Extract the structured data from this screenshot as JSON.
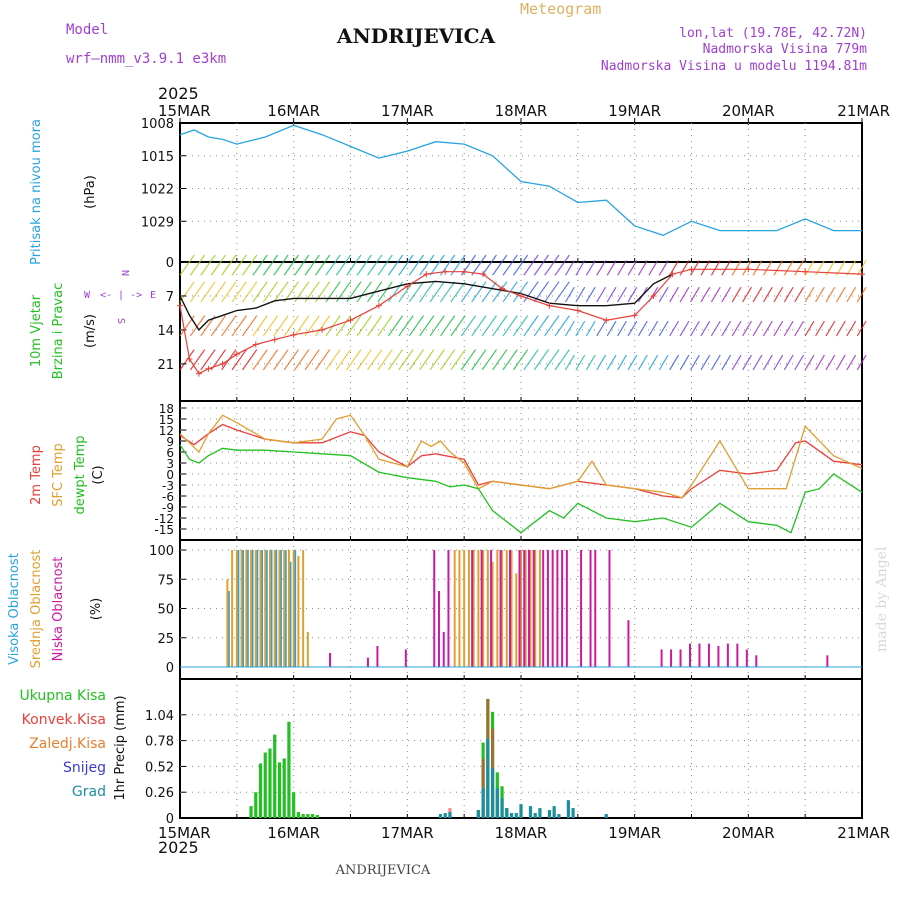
{
  "header": {
    "title": "ANDRIJEVICA",
    "meteogram_label": "Meteogram",
    "model_label": "Model",
    "model_name": "wrf—nmm_v3.9.1  e3km",
    "lonlat": "lon,lat (19.78E, 42.72N)",
    "elevation": "Nadmorska Visina 779m",
    "model_elevation": "Nadmorska Visina u modelu 1194.81m",
    "footer_title": "ANDRIJEVICA",
    "credit": "made by Angel",
    "year_top": "2025",
    "year_bottom": "2025"
  },
  "colors": {
    "pressure": "#29a3e0",
    "gust": "#e8403a",
    "wind": "#111111",
    "t2m": "#e8403a",
    "sfc": "#e0a030",
    "dew": "#22c022",
    "high": "#29a3e0",
    "mid": "#e0a030",
    "low": "#cc1aa0",
    "total": "#22c022",
    "conv": "#e8403a",
    "frozen": "#e88030",
    "snow": "#3a3ad0",
    "grad": "#1a8fa0",
    "magenta": "#a040d0"
  },
  "chart_data": [
    {
      "id": "pressure",
      "type": "line",
      "ylabel_lines": [
        "Pritisak na nivou mora",
        "(hPa)"
      ],
      "yticks": [
        1008,
        1015,
        1022,
        1029
      ],
      "ylim": [
        1008,
        1036
      ],
      "xlim": [
        0,
        144
      ],
      "x_tick_labels": [
        "15MAR",
        "16MAR",
        "17MAR",
        "18MAR",
        "19MAR",
        "20MAR",
        "21MAR"
      ],
      "series": [
        {
          "name": "MSLP",
          "x": [
            0,
            3,
            6,
            9,
            12,
            18,
            24,
            30,
            36,
            42,
            48,
            54,
            60,
            66,
            72,
            78,
            84,
            90,
            96,
            102,
            108,
            114,
            120,
            126,
            132,
            138,
            144
          ],
          "values": [
            1010.5,
            1009.5,
            1011,
            1011.5,
            1012.5,
            1011,
            1008.5,
            1010.5,
            1013,
            1015.5,
            1014,
            1012,
            1012.5,
            1015,
            1020.5,
            1021.5,
            1025,
            1024.5,
            1030,
            1032,
            1029,
            1031,
            1031,
            1031,
            1028.5,
            1031,
            1031
          ]
        }
      ]
    },
    {
      "id": "wind",
      "type": "line",
      "ylabel_lines": [
        "10m Vjetar",
        "Brzina i Pravac",
        "(m/s)"
      ],
      "compass": [
        "N",
        "<- | ->",
        "W",
        "E",
        "S"
      ],
      "yticks": [
        0,
        7,
        14,
        21
      ],
      "ylim": [
        0,
        27
      ],
      "series": [
        {
          "name": "wind_speed",
          "x": [
            0,
            2,
            4,
            6,
            9,
            12,
            16,
            20,
            24,
            30,
            36,
            42,
            48,
            54,
            60,
            66,
            72,
            78,
            84,
            90,
            96,
            100,
            102,
            104
          ],
          "values": [
            7,
            11,
            14,
            12,
            11,
            10,
            9.5,
            8,
            7.5,
            7.5,
            7.5,
            6,
            4.5,
            4,
            4.5,
            5.5,
            6.5,
            8.5,
            9,
            9,
            8.5,
            4.5,
            3.5,
            2.5
          ]
        },
        {
          "name": "gust",
          "x": [
            0,
            2,
            4,
            6,
            9,
            12,
            16,
            20,
            24,
            30,
            36,
            42,
            48,
            52,
            56,
            60,
            64,
            68,
            72,
            78,
            84,
            90,
            96,
            100,
            104,
            108,
            120,
            132,
            144
          ],
          "values": [
            9,
            20,
            23,
            22,
            21,
            19,
            17,
            16,
            15,
            14,
            12,
            9,
            5,
            2.5,
            2,
            2,
            2.5,
            5.5,
            7,
            9,
            10,
            12,
            11,
            7,
            2.5,
            1.5,
            1.5,
            2,
            2.5
          ]
        }
      ],
      "barb_bands": [
        {
          "y_center": 21,
          "direction_flow": "from SW",
          "lines": 30
        },
        {
          "y_center": 14,
          "direction_flow": "from W",
          "lines": 30
        },
        {
          "y_center": 7,
          "direction_flow": "from W",
          "lines": 30
        },
        {
          "y_center": 1.5,
          "direction_flow": "from SW",
          "lines": 30
        }
      ]
    },
    {
      "id": "temperature",
      "type": "line",
      "ylabel_lines": [
        "2m Temp",
        "SFC Temp",
        "dewpt Temp",
        "(C)"
      ],
      "yticks": [
        18,
        15,
        12,
        9,
        6,
        3,
        0,
        -3,
        -6,
        -9,
        -12,
        -15
      ],
      "ylim": [
        -17,
        20
      ],
      "series": [
        {
          "name": "2m Temp",
          "x": [
            0,
            3,
            6,
            9,
            12,
            18,
            24,
            30,
            36,
            39,
            42,
            48,
            51,
            54,
            60,
            63,
            66,
            72,
            78,
            84,
            90,
            96,
            102,
            106,
            108,
            114,
            120,
            126,
            130,
            132,
            138,
            144
          ],
          "values": [
            10.5,
            8,
            11,
            13.5,
            12,
            9.5,
            8.5,
            8.5,
            11.5,
            10.5,
            6,
            2,
            5,
            5.5,
            4,
            -3,
            -2,
            -3,
            -4,
            -2,
            -3,
            -4,
            -6,
            -6.5,
            -4,
            1,
            0,
            1,
            8.5,
            9,
            3.5,
            2.5
          ]
        },
        {
          "name": "SFC Temp",
          "x": [
            0,
            2,
            4,
            6,
            9,
            12,
            18,
            24,
            30,
            33,
            36,
            39,
            42,
            48,
            51,
            53,
            55,
            57,
            60,
            63,
            66,
            72,
            78,
            84,
            87,
            90,
            96,
            102,
            106,
            108,
            114,
            120,
            126,
            128,
            132,
            138,
            144
          ],
          "values": [
            11,
            8.5,
            6,
            11,
            16,
            14,
            9.5,
            8.5,
            9.5,
            15,
            16,
            10.5,
            4,
            2,
            9,
            7.5,
            9,
            6,
            3,
            -4,
            -2,
            -3,
            -4,
            -2,
            3.5,
            -3,
            -4,
            -5,
            -6.5,
            -3,
            9,
            -4,
            -4,
            -4,
            13,
            5,
            1.5
          ]
        },
        {
          "name": "Dewpoint",
          "x": [
            0,
            2,
            4,
            6,
            9,
            12,
            18,
            24,
            30,
            36,
            42,
            48,
            54,
            57,
            60,
            63,
            66,
            72,
            78,
            81,
            84,
            90,
            96,
            102,
            108,
            114,
            120,
            126,
            129,
            132,
            135,
            138,
            144
          ],
          "values": [
            8,
            4,
            3,
            5,
            7,
            6.5,
            6.5,
            6,
            5.5,
            5,
            0.5,
            -1,
            -2,
            -3.5,
            -3,
            -4,
            -10,
            -16,
            -10,
            -12,
            -8,
            -12,
            -13,
            -12,
            -14.5,
            -8,
            -13,
            -14,
            -16,
            -5,
            -4,
            0,
            -5
          ]
        }
      ]
    },
    {
      "id": "clouds",
      "type": "bar",
      "ylabel_lines": [
        "Visoka Oblacnost",
        "Srednja Oblacnost",
        "Niska Oblacnost",
        "(%)"
      ],
      "yticks": [
        0,
        25,
        50,
        75,
        100
      ],
      "ylim": [
        0,
        100
      ],
      "series": [
        {
          "name": "Visoka Oblacnost",
          "x": [
            10,
            12,
            13,
            14,
            15,
            16,
            17,
            18,
            19,
            20,
            21,
            22,
            23,
            24
          ],
          "values": [
            65,
            100,
            100,
            100,
            100,
            100,
            100,
            100,
            100,
            100,
            100,
            100,
            90,
            100
          ]
        },
        {
          "name": "Srednja Oblacnost",
          "x": [
            10,
            11,
            12,
            13,
            14,
            15,
            16,
            17,
            18,
            19,
            20,
            21,
            22,
            23,
            24,
            25,
            26,
            27,
            58,
            59,
            60,
            61,
            62,
            63,
            64,
            65,
            66,
            67,
            68,
            69,
            70,
            71,
            72,
            73,
            74,
            75,
            76
          ],
          "values": [
            75,
            100,
            100,
            100,
            100,
            100,
            100,
            100,
            100,
            100,
            100,
            100,
            100,
            100,
            100,
            95,
            100,
            30,
            100,
            100,
            100,
            100,
            100,
            100,
            100,
            100,
            90,
            100,
            100,
            100,
            100,
            80,
            100,
            100,
            100,
            100,
            100
          ]
        },
        {
          "name": "Niska Oblacnost",
          "x": [
            32,
            40,
            42,
            48,
            54,
            55,
            56,
            57,
            62,
            64,
            66,
            68,
            70,
            72,
            73,
            74,
            75,
            77,
            78,
            79,
            80,
            81,
            82,
            85,
            87,
            88,
            91,
            95,
            102,
            104,
            106,
            108,
            110,
            112,
            114,
            116,
            118,
            120,
            122,
            137
          ],
          "values": [
            12,
            8,
            18,
            15,
            100,
            65,
            30,
            100,
            100,
            100,
            100,
            100,
            100,
            100,
            100,
            100,
            100,
            100,
            100,
            100,
            100,
            100,
            100,
            100,
            100,
            100,
            100,
            40,
            15,
            15,
            15,
            20,
            20,
            20,
            18,
            20,
            20,
            15,
            10,
            10
          ]
        }
      ]
    },
    {
      "id": "precip",
      "type": "bar",
      "ylabel_lines": [
        "1hr Precip (mm)"
      ],
      "legend": [
        "Ukupna Kisa",
        "Konvek.Kisa",
        "Zaledj.Kisa",
        "Snijeg",
        "Grad"
      ],
      "yticks": [
        0,
        0.26,
        0.52,
        0.78,
        1.04
      ],
      "ylim": [
        0,
        1.3
      ],
      "series": [
        {
          "name": "Ukupna Kisa",
          "x": [
            15,
            16,
            17,
            18,
            19,
            20,
            21,
            22,
            23,
            24,
            25,
            26,
            27,
            28,
            29,
            63,
            64,
            65,
            66,
            67,
            68,
            69
          ],
          "values": [
            0.12,
            0.26,
            0.55,
            0.66,
            0.7,
            0.84,
            0.56,
            0.6,
            0.97,
            0.26,
            0.06,
            0.04,
            0.04,
            0.04,
            0.03,
            0.08,
            0.76,
            1.2,
            1.07,
            0.46,
            0.32,
            0.1
          ]
        },
        {
          "name": "Konvek.Kisa",
          "x": [
            57,
            63,
            64,
            65,
            66
          ],
          "values": [
            0.1,
            0.08,
            0.6,
            1.2,
            0.9
          ]
        },
        {
          "name": "Grad",
          "x": [
            55,
            56,
            57,
            63,
            64,
            65,
            66,
            67,
            68,
            69,
            70,
            71,
            72,
            74,
            75,
            76,
            78,
            79,
            80,
            82,
            83,
            90
          ],
          "values": [
            0.04,
            0.05,
            0.06,
            0.08,
            0.3,
            0.8,
            0.5,
            0.3,
            0.2,
            0.1,
            0.05,
            0.05,
            0.14,
            0.12,
            0.05,
            0.1,
            0.08,
            0.12,
            0.04,
            0.18,
            0.1,
            0.04
          ]
        }
      ]
    }
  ]
}
